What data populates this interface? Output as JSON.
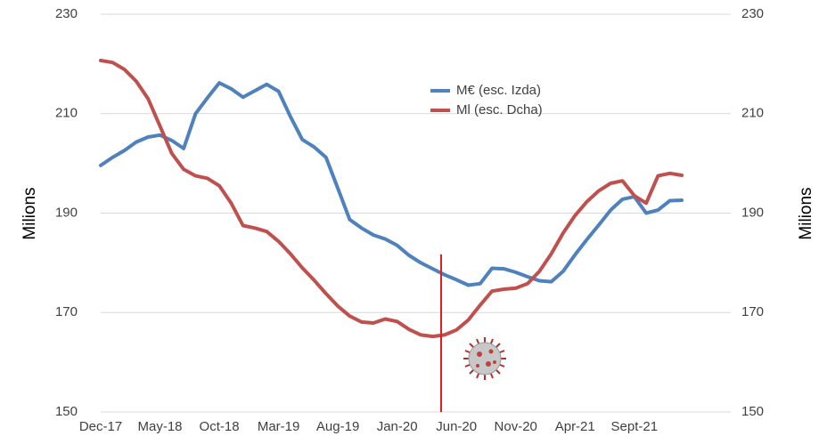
{
  "chart_data": {
    "type": "line",
    "y_label": "Milions",
    "y2_label": "Milions",
    "categories": [
      "Dec-17",
      null,
      null,
      null,
      null,
      "May-18",
      null,
      null,
      null,
      null,
      "Oct-18",
      null,
      null,
      null,
      null,
      "Mar-19",
      null,
      null,
      null,
      null,
      "Aug-19",
      null,
      null,
      null,
      null,
      "Jan-20",
      null,
      null,
      null,
      null,
      "Jun-20",
      null,
      null,
      null,
      null,
      "Nov-20",
      null,
      null,
      null,
      null,
      "Apr-21",
      null,
      null,
      null,
      null,
      "Sept-21",
      null,
      null,
      null,
      null
    ],
    "series": [
      {
        "name": "M€ (esc. Izda)",
        "color": "#4f81bd",
        "values": [
          199.6,
          201.2,
          202.6,
          204.3,
          205.3,
          205.7,
          204.6,
          203,
          210.0,
          213.2,
          216.2,
          215,
          213.3,
          214.6,
          215.9,
          214.5,
          209.4,
          204.8,
          203.3,
          201.2,
          195,
          188.7,
          187,
          185.6,
          184.8,
          183.5,
          181.5,
          180,
          178.8,
          177.6,
          176.6,
          175.5,
          175.8,
          178.9,
          178.8,
          178.1,
          177.2,
          176.4,
          176.2,
          178.3,
          181.6,
          184.7,
          187.6,
          190.6,
          192.8,
          193.3,
          190,
          190.6,
          192.5,
          192.6
        ]
      },
      {
        "name": "Ml (esc. Dcha)",
        "color": "#c0504d",
        "axis": "y2",
        "values": [
          220.7,
          220.3,
          218.9,
          216.5,
          213.0,
          207.5,
          202.0,
          198.8,
          197.5,
          197.0,
          195.5,
          192.0,
          187.5,
          187.0,
          186.3,
          184.3,
          181.8,
          179.0,
          176.5,
          173.8,
          171.3,
          169.3,
          168.1,
          167.9,
          168.7,
          168.2,
          166.6,
          165.5,
          165.2,
          165.5,
          166.5,
          168.5,
          171.5,
          174.3,
          174.7,
          174.9,
          175.8,
          178.3,
          181.8,
          186.0,
          189.5,
          192.3,
          194.5,
          196.0,
          196.5,
          193.5,
          192,
          197.5,
          198,
          197.6
        ]
      }
    ],
    "ylim": [
      150,
      230
    ],
    "yticks": [
      150,
      170,
      190,
      210,
      230
    ],
    "y2lim": [
      150,
      230
    ],
    "y2ticks": [
      150,
      170,
      190,
      210,
      230
    ],
    "grid": true,
    "legend": "upper center"
  }
}
